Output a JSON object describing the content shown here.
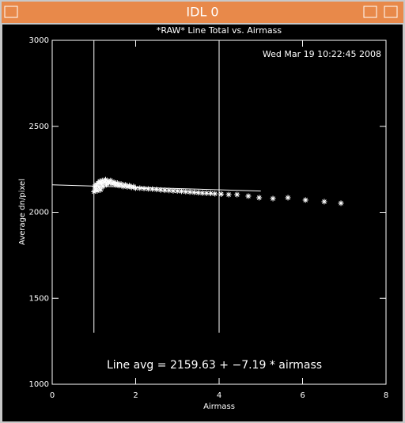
{
  "window": {
    "title": "IDL 0"
  },
  "chart_data": {
    "type": "scatter",
    "title": "*RAW* Line Total vs. Airmass",
    "timestamp": "Wed Mar 19 10:22:45 2008",
    "x_label": "Airmass",
    "y_label": "Average dn/pixel",
    "annotation": "Line avg = 2159.63 + −7.19 * airmass",
    "xlim": [
      0,
      8
    ],
    "xticks": [
      0,
      2,
      4,
      6,
      8
    ],
    "ylim": [
      1000,
      3000
    ],
    "yticks": [
      1000,
      1500,
      2000,
      2500,
      3000
    ],
    "vlines": [
      1,
      4
    ],
    "vline_range": [
      1300,
      3000
    ],
    "fit": {
      "intercept": 2159.63,
      "slope": -7.19,
      "x_range": [
        0,
        5
      ]
    },
    "color": "#ffffff",
    "x": [
      1.0,
      1.02,
      1.04,
      1.06,
      1.08,
      1.1,
      1.12,
      1.14,
      1.16,
      1.18,
      1.2,
      1.22,
      1.25,
      1.28,
      1.3,
      1.33,
      1.36,
      1.4,
      1.44,
      1.48,
      1.52,
      1.56,
      1.6,
      1.65,
      1.7,
      1.75,
      1.8,
      1.85,
      1.9,
      1.95,
      2.0,
      2.1,
      2.2,
      2.3,
      2.4,
      2.5,
      2.6,
      2.7,
      2.8,
      2.9,
      3.0,
      3.1,
      3.2,
      3.3,
      3.4,
      3.5,
      3.6,
      3.7,
      3.8,
      3.9,
      4.05,
      4.23,
      4.43,
      4.7,
      4.96,
      5.29,
      5.65,
      6.07,
      6.52,
      6.92
    ],
    "values": [
      2120,
      2150,
      2135,
      2160,
      2125,
      2170,
      2145,
      2180,
      2130,
      2165,
      2185,
      2150,
      2175,
      2190,
      2160,
      2180,
      2170,
      2185,
      2165,
      2175,
      2160,
      2170,
      2155,
      2165,
      2150,
      2160,
      2148,
      2155,
      2145,
      2150,
      2140,
      2140,
      2138,
      2136,
      2135,
      2133,
      2130,
      2128,
      2127,
      2125,
      2124,
      2122,
      2120,
      2118,
      2116,
      2114,
      2112,
      2111,
      2110,
      2108,
      2106,
      2103,
      2103,
      2094,
      2085,
      2080,
      2085,
      2071,
      2062,
      2053
    ]
  }
}
